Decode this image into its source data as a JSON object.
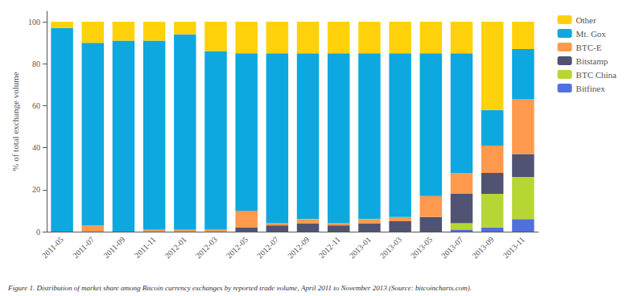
{
  "chart_data": {
    "type": "bar",
    "stacked": true,
    "ylabel": "% of total exchange volume",
    "caption": "Figure 1. Distribution of market share among Bitcoin currency exchanges by reported trade volume, April 2011 to November 2013 (Source: bitcoincharts.com).",
    "categories": [
      "2011-05",
      "2011-07",
      "2011-09",
      "2011-11",
      "2012-01",
      "2012-03",
      "2012-05",
      "2012-07",
      "2012-09",
      "2012-11",
      "2013-01",
      "2013-03",
      "2013-05",
      "2013-07",
      "2013-09",
      "2013-11"
    ],
    "series": [
      {
        "name": "Bitfinex",
        "values": [
          0,
          0,
          0,
          0,
          0,
          0,
          0,
          0,
          0,
          0,
          0,
          0,
          0,
          1,
          2,
          6
        ]
      },
      {
        "name": "BTC China",
        "values": [
          0,
          0,
          0,
          0,
          0,
          0,
          0,
          0,
          0,
          0,
          0,
          0,
          0,
          3,
          16,
          20
        ]
      },
      {
        "name": "Bitstamp",
        "values": [
          0,
          0,
          0,
          0,
          0,
          0,
          2,
          3,
          4,
          3,
          4,
          5,
          7,
          14,
          10,
          11
        ]
      },
      {
        "name": "BTC-E",
        "values": [
          0,
          3,
          0,
          1,
          1,
          1,
          8,
          1,
          2,
          1,
          2,
          2,
          10,
          10,
          13,
          26
        ]
      },
      {
        "name": "Mt. Gox",
        "values": [
          97,
          87,
          91,
          90,
          93,
          85,
          75,
          81,
          79,
          81,
          79,
          78,
          68,
          57,
          17,
          24
        ]
      },
      {
        "name": "Other",
        "values": [
          3,
          10,
          9,
          9,
          6,
          14,
          15,
          15,
          15,
          15,
          15,
          15,
          15,
          15,
          42,
          13
        ]
      }
    ],
    "ylim": [
      0,
      105
    ],
    "yticks": [
      0,
      20,
      40,
      60,
      80,
      100
    ],
    "grid": false,
    "legend": "upper right"
  }
}
